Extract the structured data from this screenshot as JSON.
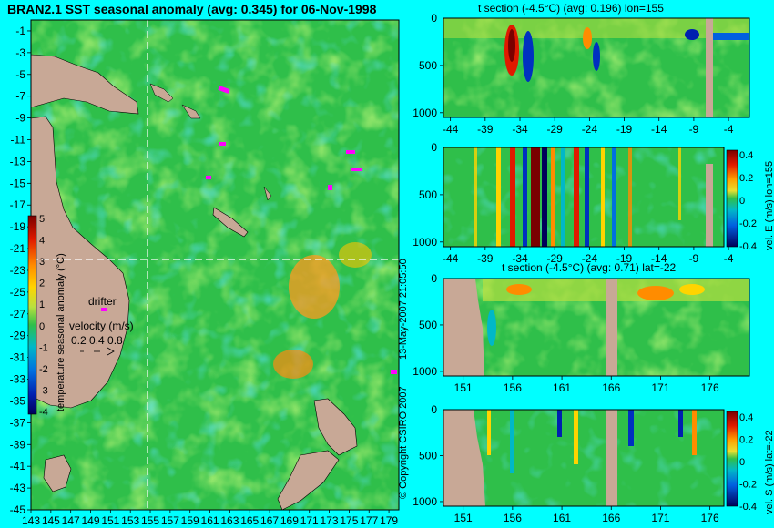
{
  "page": {
    "colors": {
      "background": "#00ffff",
      "land": "#c8a896",
      "ocean_mean": "#2fbf4a"
    }
  },
  "main_map": {
    "title": "BRAN2.1 SST seasonal anomaly (avg: 0.345) for 06-Nov-1998",
    "lat_ticks": [
      "-1",
      "-3",
      "-5",
      "-7",
      "-9",
      "-11",
      "-13",
      "-15",
      "-17",
      "-19",
      "-21",
      "-23",
      "-25",
      "-27",
      "-29",
      "-31",
      "-33",
      "-35",
      "-37",
      "-39",
      "-41",
      "-43",
      "-45"
    ],
    "lon_ticks": [
      "143",
      "145",
      "147",
      "149",
      "151",
      "153",
      "155",
      "157",
      "159",
      "161",
      "163",
      "165",
      "167",
      "169",
      "171",
      "173",
      "175",
      "177",
      "179"
    ],
    "colorbar": {
      "label": "temperature seasonal anomaly (°C)",
      "ticks": [
        "5",
        "4",
        "3",
        "2",
        "1",
        "0",
        "-1",
        "-2",
        "-3",
        "-4"
      ]
    },
    "legend": {
      "drifter_label": "drifter",
      "velocity_label": "velocity (m/s)",
      "velocity_values": "0.2  0.4  0.8"
    }
  },
  "side_text": {
    "timestamp": "13-May-2007 21:05:50",
    "copyright": "© Copyright CSIRO 2007"
  },
  "panels": [
    {
      "title": "t section (-4.5°C) (avg: 0.196) lon=155",
      "y_ticks": [
        "500",
        "1000"
      ],
      "x_ticks": [
        "-44",
        "-39",
        "-34",
        "-29",
        "-24",
        "-19",
        "-14",
        "-9",
        "-4"
      ]
    },
    {
      "title": "",
      "y_ticks": [
        "500",
        "1000"
      ],
      "x_ticks": [
        "-44",
        "-39",
        "-34",
        "-29",
        "-24",
        "-19",
        "-14",
        "-9",
        "-4"
      ],
      "colorbar": {
        "label": "vel. E (m/s)  lon=155",
        "ticks": [
          "0.4",
          "0.2",
          "0",
          "-0.2",
          "-0.4"
        ]
      }
    },
    {
      "title": "t section (-4.5°C) (avg: 0.71) lat=-22",
      "y_ticks": [
        "500",
        "1000"
      ],
      "x_ticks": [
        "151",
        "156",
        "161",
        "166",
        "171",
        "176"
      ]
    },
    {
      "title": "",
      "y_ticks": [
        "500",
        "1000"
      ],
      "x_ticks": [
        "151",
        "156",
        "161",
        "166",
        "171",
        "176"
      ],
      "colorbar": {
        "label": "vel. S (m/s)  lat=-22",
        "ticks": [
          "0.4",
          "0.2",
          "0",
          "-0.2",
          "-0.4"
        ]
      }
    }
  ],
  "chart_data": [
    {
      "type": "heatmap",
      "title": "BRAN2.1 SST seasonal anomaly (avg: 0.345) for 06-Nov-1998",
      "xlabel": "",
      "ylabel": "",
      "xlim": [
        143,
        180
      ],
      "ylim": [
        -45,
        0
      ],
      "colorbar_label": "temperature seasonal anomaly (°C)",
      "colorbar_range": [
        -4,
        5
      ],
      "avg": 0.345,
      "date": "06-Nov-1998",
      "markers": [
        "lon=155 (dashed vertical)",
        "lat=-22 (dashed horizontal)"
      ]
    },
    {
      "type": "heatmap",
      "title": "t section (-4.5°C) (avg: 0.196) lon=155",
      "xlim": [
        -45,
        -1
      ],
      "ylim": [
        1050,
        0
      ],
      "avg": 0.196
    },
    {
      "type": "heatmap",
      "title": "",
      "colorbar_label": "vel. E (m/s)  lon=155",
      "xlim": [
        -45,
        -1
      ],
      "ylim": [
        1050,
        0
      ],
      "colorbar_range": [
        -0.4,
        0.4
      ]
    },
    {
      "type": "heatmap",
      "title": "t section (-4.5°C) (avg: 0.71) lat=-22",
      "xlim": [
        149,
        180
      ],
      "ylim": [
        1050,
        0
      ],
      "avg": 0.71
    },
    {
      "type": "heatmap",
      "title": "",
      "colorbar_label": "vel. S (m/s)  lat=-22",
      "xlim": [
        149,
        180
      ],
      "ylim": [
        1050,
        0
      ],
      "colorbar_range": [
        -0.4,
        0.4
      ]
    }
  ]
}
